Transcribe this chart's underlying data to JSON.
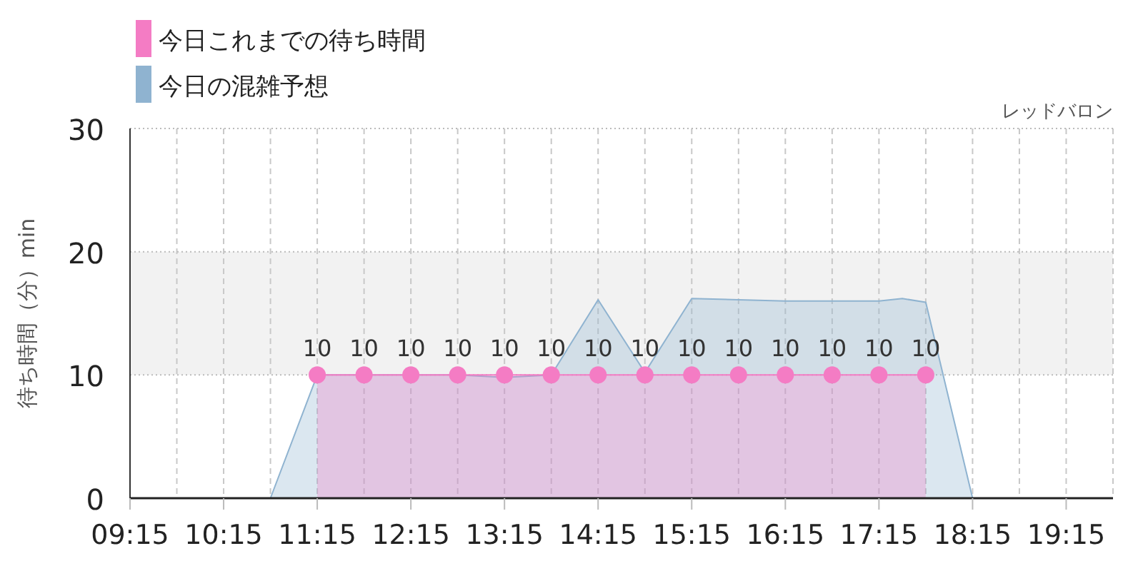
{
  "chart_data": {
    "type": "area",
    "title": "レッドバロン",
    "ylabel": "待ち時間（分）min",
    "xlim": [
      9.25,
      19.75
    ],
    "xticks": [
      {
        "value": 9.25,
        "label": "09:15"
      },
      {
        "value": 9.75,
        "label": null
      },
      {
        "value": 10.25,
        "label": "10:15"
      },
      {
        "value": 10.75,
        "label": null
      },
      {
        "value": 11.25,
        "label": "11:15"
      },
      {
        "value": 11.75,
        "label": null
      },
      {
        "value": 12.25,
        "label": "12:15"
      },
      {
        "value": 12.75,
        "label": null
      },
      {
        "value": 13.25,
        "label": "13:15"
      },
      {
        "value": 13.75,
        "label": null
      },
      {
        "value": 14.25,
        "label": "14:15"
      },
      {
        "value": 14.75,
        "label": null
      },
      {
        "value": 15.25,
        "label": "15:15"
      },
      {
        "value": 15.75,
        "label": null
      },
      {
        "value": 16.25,
        "label": "16:15"
      },
      {
        "value": 16.75,
        "label": null
      },
      {
        "value": 17.25,
        "label": "17:15"
      },
      {
        "value": 17.75,
        "label": null
      },
      {
        "value": 18.25,
        "label": "18:15"
      },
      {
        "value": 18.75,
        "label": null
      },
      {
        "value": 19.25,
        "label": "19:15"
      },
      {
        "value": 19.75,
        "label": null
      }
    ],
    "ylim": [
      0,
      30
    ],
    "yticks": [
      0,
      10,
      20,
      30
    ],
    "grid": true,
    "legend": "top left",
    "bands": [
      {
        "axis": "y",
        "from": 10,
        "to": 20,
        "color": "#f2f2f2"
      }
    ],
    "series": [
      {
        "name": "今日これまでの待ち時間",
        "color": "#f47cc4",
        "marker": "circle",
        "x": [
          11.25,
          11.75,
          12.25,
          12.75,
          13.25,
          13.75,
          14.25,
          14.75,
          15.25,
          15.75,
          16.25,
          16.75,
          17.25,
          17.75
        ],
        "values": [
          10,
          10,
          10,
          10,
          10,
          10,
          10,
          10,
          10,
          10,
          10,
          10,
          10,
          10
        ],
        "value_labels": [
          "10",
          "10",
          "10",
          "10",
          "10",
          "10",
          "10",
          "10",
          "10",
          "10",
          "10",
          "10",
          "10",
          "10"
        ]
      },
      {
        "name": "今日の混雑予想",
        "color": "#8fb3d0",
        "marker": "none",
        "x": [
          9.25,
          9.75,
          10.25,
          10.75,
          11.25,
          11.75,
          12.25,
          12.75,
          13.25,
          13.75,
          14.25,
          14.75,
          15.25,
          15.75,
          16.25,
          16.75,
          17.25,
          17.5,
          17.75,
          18.25,
          18.75,
          19.25,
          19.75
        ],
        "values": [
          0,
          0,
          0,
          0,
          10,
          10,
          10,
          10,
          9.8,
          10,
          16.1,
          10.2,
          16.2,
          16.1,
          16,
          16,
          16,
          16.2,
          15.9,
          0,
          0,
          0,
          0
        ]
      }
    ]
  }
}
